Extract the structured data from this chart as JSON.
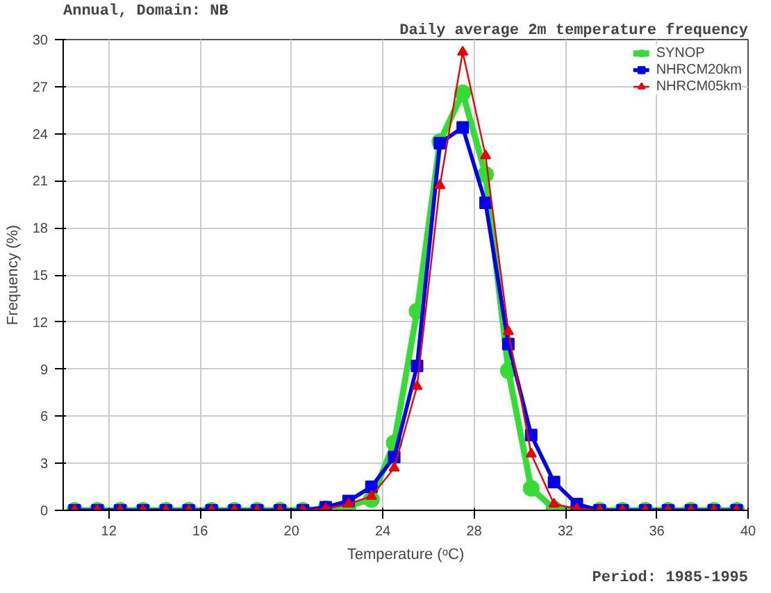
{
  "chart_data": {
    "type": "line",
    "title": "Daily average 2m temperature frequency",
    "subtitle": "Annual, Domain: NB",
    "xlabel": "Temperature (ᵒC)",
    "ylabel": "Frequency (%)",
    "annotations": [
      "Period: 1985-1995"
    ],
    "x": [
      10.5,
      11.5,
      12.5,
      13.5,
      14.5,
      15.5,
      16.5,
      17.5,
      18.5,
      19.5,
      20.5,
      21.5,
      22.5,
      23.5,
      24.5,
      25.5,
      26.5,
      27.5,
      28.5,
      29.5,
      30.5,
      31.5,
      32.5,
      33.5,
      34.5,
      35.5,
      36.5,
      37.5,
      38.5,
      39.5
    ],
    "series": [
      {
        "name": "SYNOP",
        "color": "#33dd33",
        "marker": "circle",
        "values": [
          0,
          0,
          0,
          0,
          0,
          0,
          0,
          0,
          0,
          0,
          0,
          0.1,
          0.3,
          0.7,
          4.3,
          12.7,
          23.5,
          26.6,
          21.4,
          8.9,
          1.4,
          0.1,
          0,
          0,
          0,
          0,
          0,
          0,
          0,
          0
        ]
      },
      {
        "name": "NHRCM20km",
        "color": "#0000ee",
        "marker": "square",
        "values": [
          0,
          0,
          0,
          0,
          0,
          0,
          0,
          0,
          0,
          0,
          0,
          0.2,
          0.6,
          1.5,
          3.4,
          9.2,
          23.4,
          24.4,
          19.6,
          10.6,
          4.8,
          1.8,
          0.4,
          0,
          0,
          0,
          0,
          0,
          0,
          0
        ]
      },
      {
        "name": "NHRCM05km",
        "color": "#ee0000",
        "marker": "triangle",
        "values": [
          0,
          0,
          0,
          0,
          0,
          0,
          0,
          0,
          0,
          0,
          0,
          0.1,
          0.4,
          0.9,
          2.7,
          7.9,
          20.7,
          29.2,
          22.6,
          11.4,
          3.6,
          0.4,
          0.1,
          0,
          0,
          0,
          0,
          0,
          0,
          0
        ]
      }
    ],
    "xlim": [
      10,
      40
    ],
    "ylim": [
      0,
      30
    ],
    "xticks": [
      12,
      16,
      20,
      24,
      28,
      32,
      36,
      40
    ],
    "yticks": [
      0,
      3,
      6,
      9,
      12,
      15,
      18,
      21,
      24,
      27,
      30
    ],
    "grid": true,
    "legend": "top right"
  }
}
